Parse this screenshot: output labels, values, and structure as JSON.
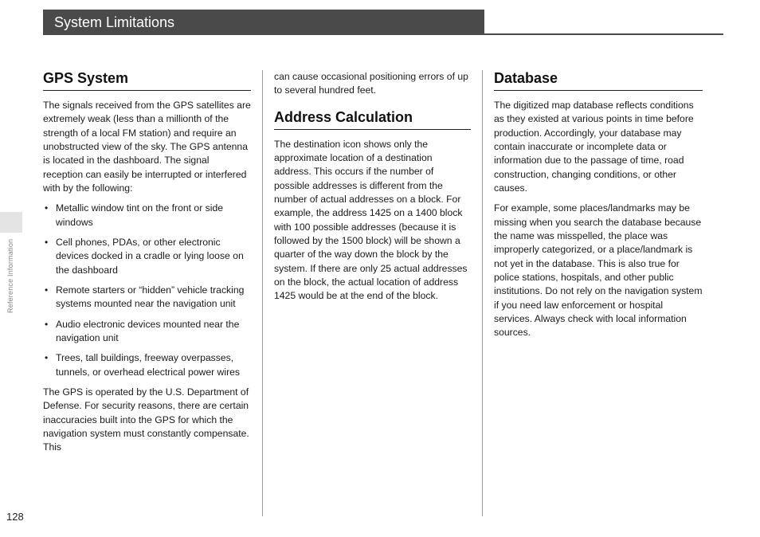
{
  "page_number": "128",
  "side_label": "Reference Information",
  "header_title": "System Limitations",
  "col1": {
    "h1": "GPS System",
    "p1": "The signals received from the GPS satellites are extremely weak (less than a millionth of the strength of a local FM station) and require an unobstructed view of the sky. The GPS antenna is located in the dashboard. The signal reception can easily be interrupted or interfered with by the following:",
    "b1": "Metallic window tint on the front or side windows",
    "b2": "Cell phones, PDAs, or other electronic devices docked in a cradle or lying loose on the dashboard",
    "b3": "Remote starters or “hidden” vehicle tracking systems mounted near the navigation unit",
    "b4": "Audio electronic devices mounted near the navigation unit",
    "b5": "Trees, tall buildings, freeway overpasses, tunnels, or overhead electrical power wires",
    "p2": "The GPS is operated by the U.S. Department of Defense. For security reasons, there are certain inaccuracies built into the GPS for which the navigation system must constantly compensate. This"
  },
  "col2": {
    "p1": "can cause occasional positioning errors of up to several hundred feet.",
    "h1": "Address Calculation",
    "p2": "The destination icon shows only the approximate location of a destination address. This occurs if the number of possible addresses is different from the number of actual addresses on a block. For example, the address 1425 on a 1400 block with 100 possible addresses (because it is followed by the 1500 block) will be shown a quarter of the way down the block by the system. If there are only 25 actual addresses on the block, the actual location of address 1425 would be at the end of the block."
  },
  "col3": {
    "h1": "Database",
    "p1": "The digitized map database reflects conditions as they existed at various points in time before production. Accordingly, your database may contain inaccurate or incomplete data or information due to the passage of time, road construction, changing conditions, or other causes.",
    "p2": "For example, some places/landmarks may be missing when you search the database because the name was misspelled, the place was improperly categorized, or a place/landmark is not yet in the database. This is also true for police stations, hospitals, and other public institutions. Do not rely on the navigation system if you need law enforcement or hospital services. Always check with local information sources."
  }
}
